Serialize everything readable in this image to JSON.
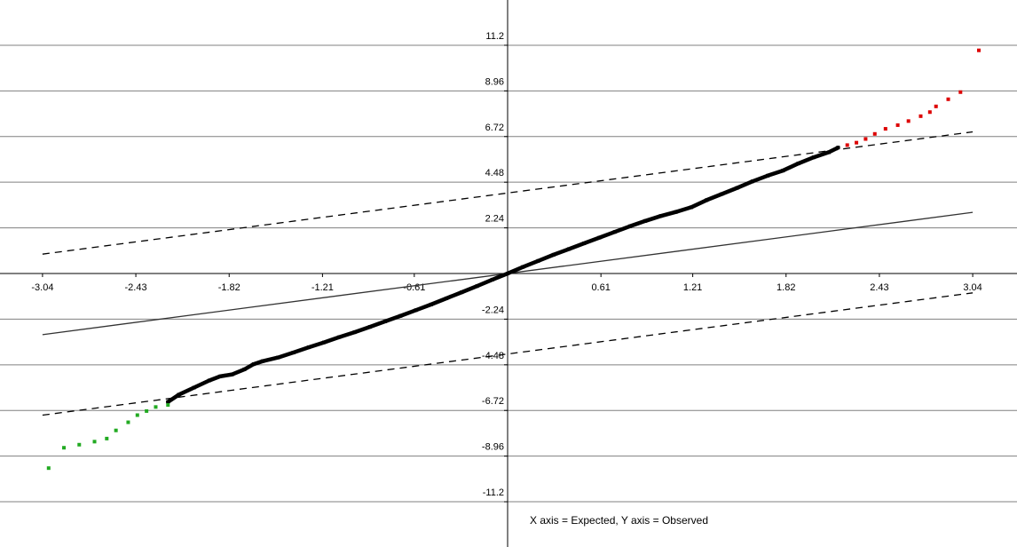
{
  "chart_data": {
    "type": "scatter",
    "title": "",
    "annotation": "X axis = Expected, Y axis = Observed",
    "xlim": [
      -3.04,
      3.04
    ],
    "ylim": [
      -11.2,
      11.2
    ],
    "x_ticks": [
      "-3.04",
      "-2.43",
      "-1.82",
      "-1.21",
      "-0.61",
      "0.61",
      "1.21",
      "1.82",
      "2.43",
      "3.04"
    ],
    "x_tick_values": [
      -3.04,
      -2.43,
      -1.82,
      -1.21,
      -0.61,
      0.61,
      1.21,
      1.82,
      2.43,
      3.04
    ],
    "y_ticks": [
      "11.2",
      "8.96",
      "6.72",
      "4.48",
      "2.24",
      "-2.24",
      "-4.48",
      "-6.72",
      "-8.96",
      "-11.2"
    ],
    "y_tick_values": [
      11.2,
      8.96,
      6.72,
      4.48,
      2.24,
      -2.24,
      -4.48,
      -6.72,
      -8.96,
      -11.2
    ],
    "grid": "horizontal",
    "reference_line": {
      "x": [
        -3.04,
        3.04
      ],
      "y": [
        -3.0,
        3.0
      ],
      "style": "solid",
      "color": "#333333"
    },
    "bounds": [
      {
        "x": [
          -3.04,
          3.04
        ],
        "y": [
          0.95,
          6.95
        ],
        "style": "dashed"
      },
      {
        "x": [
          -3.04,
          3.04
        ],
        "y": [
          -6.95,
          -0.95
        ],
        "style": "dashed"
      }
    ],
    "series": [
      {
        "color": "#000000",
        "points": [
          [
            -2.22,
            -6.3
          ],
          [
            -2.15,
            -5.95
          ],
          [
            -2.05,
            -5.6
          ],
          [
            -1.95,
            -5.25
          ],
          [
            -1.88,
            -5.05
          ],
          [
            -1.8,
            -4.95
          ],
          [
            -1.72,
            -4.7
          ],
          [
            -1.66,
            -4.45
          ],
          [
            -1.6,
            -4.3
          ],
          [
            -1.5,
            -4.12
          ],
          [
            -1.4,
            -3.88
          ],
          [
            -1.3,
            -3.62
          ],
          [
            -1.2,
            -3.38
          ],
          [
            -1.1,
            -3.12
          ],
          [
            -1.0,
            -2.88
          ],
          [
            -0.9,
            -2.62
          ],
          [
            -0.8,
            -2.35
          ],
          [
            -0.7,
            -2.08
          ],
          [
            -0.6,
            -1.8
          ],
          [
            -0.5,
            -1.52
          ],
          [
            -0.4,
            -1.22
          ],
          [
            -0.3,
            -0.92
          ],
          [
            -0.2,
            -0.62
          ],
          [
            -0.1,
            -0.3
          ],
          [
            0.0,
            0.0
          ],
          [
            0.1,
            0.32
          ],
          [
            0.2,
            0.62
          ],
          [
            0.3,
            0.92
          ],
          [
            0.4,
            1.2
          ],
          [
            0.5,
            1.48
          ],
          [
            0.6,
            1.76
          ],
          [
            0.7,
            2.04
          ],
          [
            0.8,
            2.32
          ],
          [
            0.9,
            2.58
          ],
          [
            1.0,
            2.82
          ],
          [
            1.1,
            3.02
          ],
          [
            1.2,
            3.25
          ],
          [
            1.3,
            3.6
          ],
          [
            1.4,
            3.9
          ],
          [
            1.5,
            4.2
          ],
          [
            1.6,
            4.52
          ],
          [
            1.7,
            4.8
          ],
          [
            1.8,
            5.05
          ],
          [
            1.9,
            5.4
          ],
          [
            2.0,
            5.7
          ],
          [
            2.1,
            5.95
          ],
          [
            2.16,
            6.18
          ]
        ]
      },
      {
        "color": "#dd0000",
        "points": [
          [
            2.22,
            6.3
          ],
          [
            2.28,
            6.42
          ],
          [
            2.34,
            6.6
          ],
          [
            2.4,
            6.85
          ],
          [
            2.47,
            7.1
          ],
          [
            2.55,
            7.28
          ],
          [
            2.62,
            7.48
          ],
          [
            2.7,
            7.72
          ],
          [
            2.76,
            7.92
          ],
          [
            2.8,
            8.2
          ],
          [
            2.88,
            8.55
          ],
          [
            2.96,
            8.9
          ],
          [
            3.08,
            10.95
          ]
        ]
      },
      {
        "color": "#22aa22",
        "points": [
          [
            -2.22,
            -6.45
          ],
          [
            -2.3,
            -6.55
          ],
          [
            -2.36,
            -6.75
          ],
          [
            -2.42,
            -6.95
          ],
          [
            -2.48,
            -7.3
          ],
          [
            -2.56,
            -7.7
          ],
          [
            -2.62,
            -8.1
          ],
          [
            -2.7,
            -8.25
          ],
          [
            -2.8,
            -8.4
          ],
          [
            -2.9,
            -8.55
          ],
          [
            -3.0,
            -9.55
          ]
        ]
      }
    ]
  }
}
